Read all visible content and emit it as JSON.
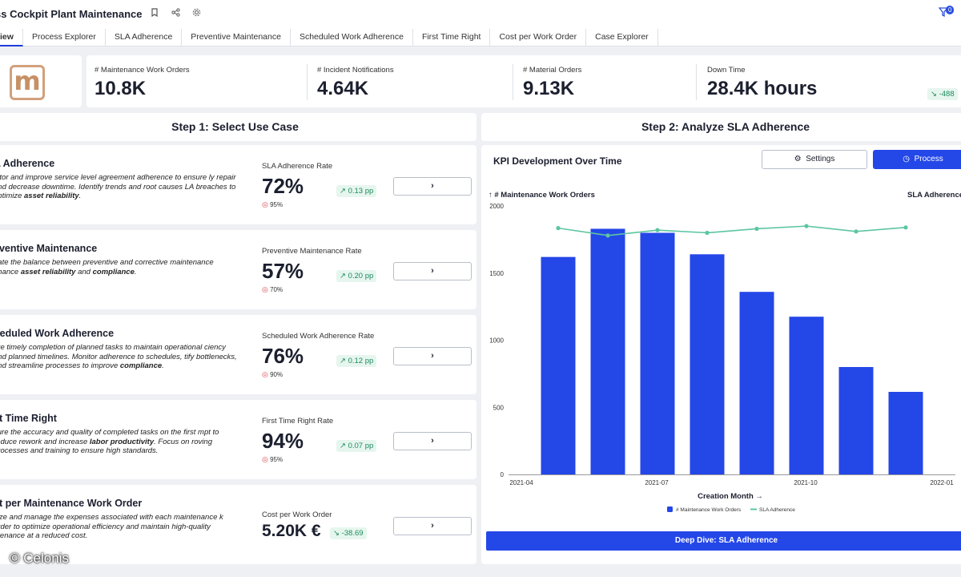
{
  "app": {
    "title": "ss Cockpit Plant Maintenance",
    "filter_count": "0"
  },
  "icons": {
    "bookmark": "bookmark-icon",
    "share": "share-icon",
    "settings": "gear-icon",
    "filter": "filter-icon"
  },
  "tabs": [
    {
      "label": "iew",
      "active": true
    },
    {
      "label": "Process Explorer"
    },
    {
      "label": "SLA Adherence"
    },
    {
      "label": "Preventive Maintenance"
    },
    {
      "label": "Scheduled Work Adherence"
    },
    {
      "label": "First Time Right"
    },
    {
      "label": "Cost per Work Order"
    },
    {
      "label": "Case Explorer"
    }
  ],
  "logo": {
    "letter": "m"
  },
  "kpis": [
    {
      "label": "# Maintenance Work Orders",
      "value": "10.8K"
    },
    {
      "label": "# Incident Notifications",
      "value": "4.64K"
    },
    {
      "label": "# Material Orders",
      "value": "9.13K"
    },
    {
      "label": "Down Time",
      "value": "28.4K hours",
      "trend": "↘ -488"
    }
  ],
  "step1": {
    "title": "Step 1: Select Use Case"
  },
  "step2": {
    "title": "Step 2: Analyze SLA Adherence"
  },
  "use_cases": [
    {
      "title": "A Adherence",
      "desc_parts": [
        "nitor and improve service level agreement adherence to ensure ly repair and decrease downtime. Identify trends and root causes LA breaches to optimize ",
        "asset reliability",
        "."
      ],
      "metric_label": "SLA Adherence Rate",
      "metric_value": "72%",
      "target": "95%",
      "trend": "↗ 0.13 pp",
      "button": "›"
    },
    {
      "title": "eventive Maintenance",
      "desc_parts": [
        "uate the balance between preventive and corrective maintenance nhance ",
        "asset reliability",
        " and ",
        "compliance",
        "."
      ],
      "metric_label": "Preventive Maintenance Rate",
      "metric_value": "57%",
      "target": "70%",
      "trend": "↗ 0.20 pp",
      "button": "›"
    },
    {
      "title": "heduled Work Adherence",
      "desc_parts": [
        "ure timely completion of planned tasks to maintain operational ciency and planned timelines. Monitor adherence to schedules, tify bottlenecks, and streamline processes to improve ",
        "compliance",
        "."
      ],
      "metric_label": "Scheduled Work Adherence Rate",
      "metric_value": "76%",
      "target": "90%",
      "trend": "↗ 0.12 pp",
      "button": "›"
    },
    {
      "title": "st Time Right",
      "desc_parts": [
        "sure the accuracy and quality of completed tasks on the first mpt to reduce rework and increase ",
        "labor productivity",
        ". Focus on roving processes and training to ensure high standards."
      ],
      "metric_label": "First Time Right Rate",
      "metric_value": "94%",
      "target": "95%",
      "trend": "↗ 0.07 pp",
      "button": "›"
    },
    {
      "title": "st per Maintenance Work Order",
      "desc_parts": [
        "lyze and manage the expenses associated with each maintenance k order to optimize operational efficiency and maintain high-quality ntenance at a reduced cost."
      ],
      "metric_label": "Cost per Work Order",
      "metric_value": "5.20K €",
      "target": "",
      "trend": "↘ -38.69",
      "button": "›"
    }
  ],
  "chart_panel": {
    "title": "KPI Development Over Time",
    "settings_label": "Settings",
    "process_label": "Process",
    "deep_dive_label": "Deep Dive: SLA Adherence"
  },
  "chart_data": {
    "type": "bar",
    "title": "KPI Development Over Time",
    "xlabel": "Creation Month →",
    "ylabel": "↑ # Maintenance Work Orders",
    "y2label": "SLA Adherence",
    "ylim": [
      0,
      2000
    ],
    "yticks": [
      0,
      500,
      1000,
      1500,
      2000
    ],
    "xticks": [
      "2021-04",
      "2021-07",
      "2021-10",
      "2022-01"
    ],
    "categories": [
      "2021-04",
      "2021-05",
      "2021-06",
      "2021-07",
      "2021-08",
      "2021-09",
      "2021-10",
      "2021-11"
    ],
    "series": [
      {
        "name": "# Maintenance Work Orders",
        "type": "bar",
        "color": "#2447e8",
        "values": [
          1620,
          1830,
          1800,
          1640,
          1360,
          1175,
          800,
          615
        ]
      },
      {
        "name": "SLA Adherence",
        "type": "line",
        "color": "#5cc6a0",
        "values_on_primary_scale": [
          1835,
          1780,
          1820,
          1800,
          1830,
          1850,
          1810,
          1840
        ]
      }
    ],
    "legend": [
      "# Maintenance Work Orders",
      "SLA Adherence"
    ],
    "legend_position": "bottom"
  },
  "watermark": "© Celonis"
}
